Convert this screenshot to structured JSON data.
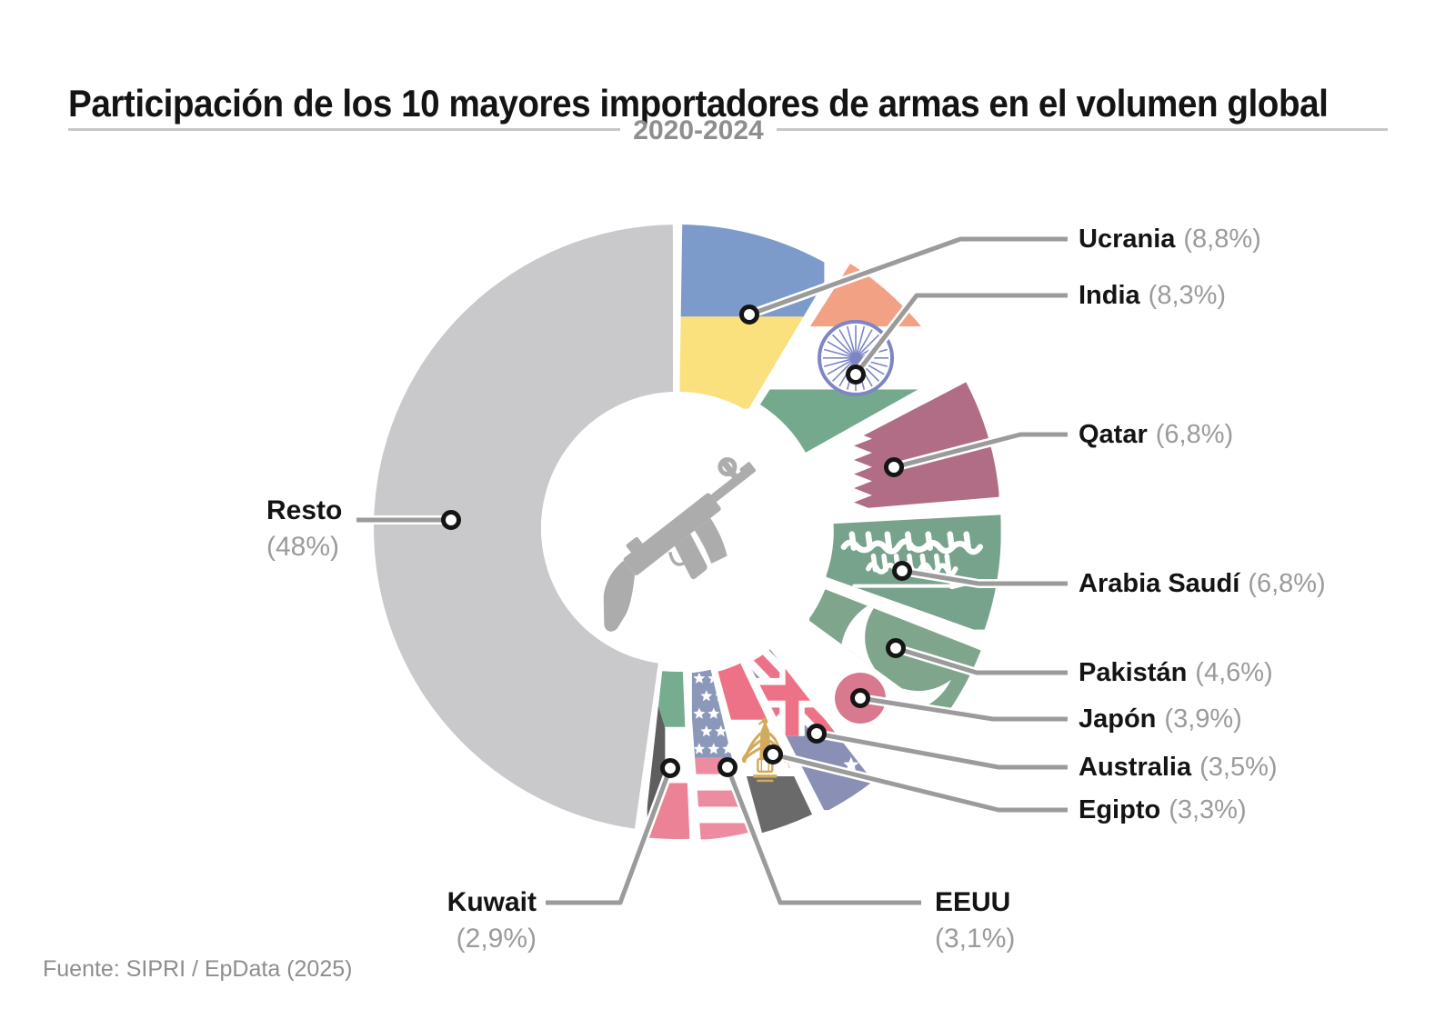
{
  "title": "Participación de los 10 mayores importadores de armas en el volumen global",
  "subtitle": "2020-2024",
  "source": "Fuente: SIPRI / EpData (2025)",
  "center_icon": "submachine-gun",
  "chart_data": {
    "type": "pie",
    "donut": true,
    "title": "Participación de los 10 mayores importadores de armas en el volumen global",
    "subtitle": "2020-2024",
    "unit": "% del volumen global de importaciones de armas",
    "start_angle_deg": 0,
    "direction": "clockwise",
    "slices": [
      {
        "id": "ucrania",
        "label": "Ucrania",
        "value": 8.8,
        "value_label": "(8,8%)",
        "flag": "ukraine"
      },
      {
        "id": "india",
        "label": "India",
        "value": 8.3,
        "value_label": "(8,3%)",
        "flag": "india"
      },
      {
        "id": "qatar",
        "label": "Qatar",
        "value": 6.8,
        "value_label": "(6,8%)",
        "flag": "qatar"
      },
      {
        "id": "arabia-saudi",
        "label": "Arabia Saudí",
        "value": 6.8,
        "value_label": "(6,8%)",
        "flag": "saudi"
      },
      {
        "id": "pakistan",
        "label": "Pakistán",
        "value": 4.6,
        "value_label": "(4,6%)",
        "flag": "pakistan"
      },
      {
        "id": "japon",
        "label": "Japón",
        "value": 3.9,
        "value_label": "(3,9%)",
        "flag": "japan"
      },
      {
        "id": "australia",
        "label": "Australia",
        "value": 3.5,
        "value_label": "(3,5%)",
        "flag": "australia"
      },
      {
        "id": "egipto",
        "label": "Egipto",
        "value": 3.3,
        "value_label": "(3,3%)",
        "flag": "egypt"
      },
      {
        "id": "eeuu",
        "label": "EEUU",
        "value": 3.1,
        "value_label": "(3,1%)",
        "flag": "usa"
      },
      {
        "id": "kuwait",
        "label": "Kuwait",
        "value": 2.9,
        "value_label": "(2,9%)",
        "flag": "kuwait"
      },
      {
        "id": "resto",
        "label": "Resto",
        "value": 48,
        "value_label": "(48%)",
        "flag": "plain"
      }
    ],
    "palette": {
      "resto": "#C9C8CA",
      "ukraine_blue": "#7C9BCA",
      "ukraine_yellow": "#FBE17E",
      "india_saffron": "#F2A184",
      "india_green": "#75A98E",
      "india_chakra": "#7D85C5",
      "qatar_maroon": "#B16D85",
      "saudi_green": "#77A28C",
      "pakistan_green": "#7FA68D",
      "japan_red": "#D9798F",
      "australia_blue": "#8A90B5",
      "australia_red": "#EE7287",
      "egypt_red": "#EE7287",
      "egypt_black": "#6A6A6A",
      "egypt_gold": "#D3A95C",
      "usa_blue": "#8C98BA",
      "usa_red": "#ED8CA1",
      "kuwait_green": "#76AC90",
      "kuwait_red": "#EC8296",
      "kuwait_black": "#5E5E5E",
      "leader_line": "#9B9B9B",
      "marker_stroke": "#151515",
      "text_dark": "#141414",
      "text_gray": "#9B9B9B",
      "icon_gray": "#ACACAC"
    }
  }
}
